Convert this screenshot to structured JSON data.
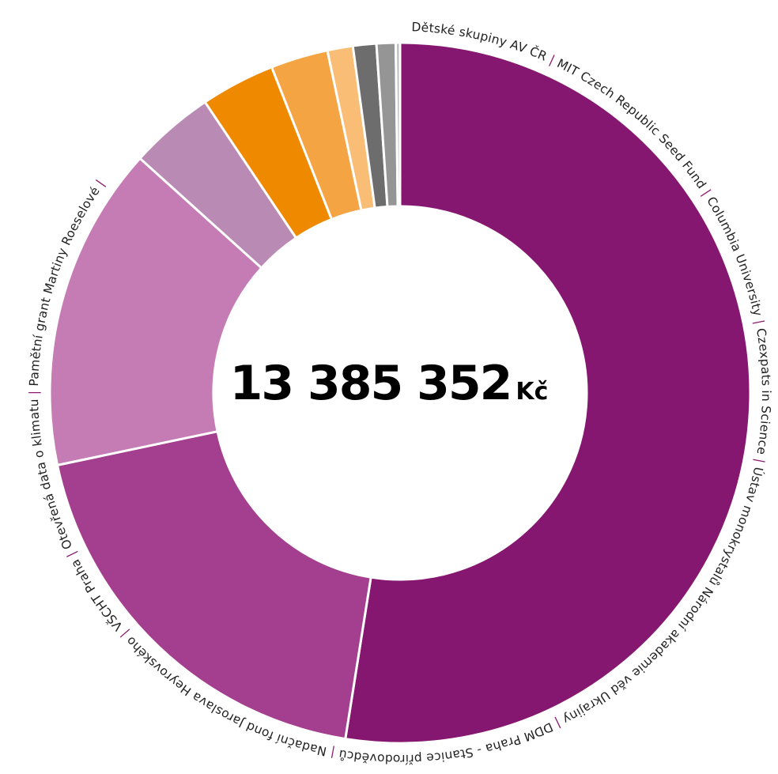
{
  "total": {
    "value": "13 385 352",
    "currency": "Kč"
  },
  "chart_data": {
    "type": "pie",
    "variant": "donut",
    "title": "",
    "total_label": "13 385 352 Kč",
    "legend": "labels around ring",
    "label_separator": "|",
    "slices": [
      {
        "label": "Nadační fond Jaroslava Heyrovského",
        "share_percent": 53.6,
        "color": "#851770"
      },
      {
        "label": "Ústav monokrystalů Národní akademie věd Ukrajiny",
        "share_percent": 19.6,
        "color": "#a43e8e"
      },
      {
        "label": "DDM Praha - Stanice přírodovědců",
        "share_percent": 15.3,
        "color": "#c57cb4"
      },
      {
        "label": "VŠCHT Praha",
        "share_percent": 4.0,
        "color": "#b98ab3"
      },
      {
        "label": "Otevřená data o klimatu",
        "share_percent": 3.5,
        "color": "#ef8a00"
      },
      {
        "label": "Pamětní grant Martiny Roeselové",
        "share_percent": 2.7,
        "color": "#f4a443"
      },
      {
        "label": "Dětské skupiny AV ČR",
        "share_percent": 1.2,
        "color": "#f9bd75"
      },
      {
        "label": "MIT Czech Republic Seed Fund",
        "share_percent": 1.1,
        "color": "#6d6d6d"
      },
      {
        "label": "Columbia University",
        "share_percent": 0.9,
        "color": "#959595"
      },
      {
        "label": "Czexpats in Science",
        "share_percent": 0.2,
        "color": "#bdbdbd"
      }
    ],
    "ring_label_order": [
      "Dětské skupiny AV ČR",
      "MIT Czech Republic Seed Fund",
      "Columbia University",
      "Czexpats in Science",
      "Ústav monokrystalů Národní akademie věd Ukrajiny",
      "DDM Praha - Stanice přírodovědců",
      "Nadační fond Jaroslava Heyrovského",
      "VŠCHT Praha",
      "Otevřená data o klimatu",
      "Pamětní grant Martiny Roeselové"
    ]
  }
}
